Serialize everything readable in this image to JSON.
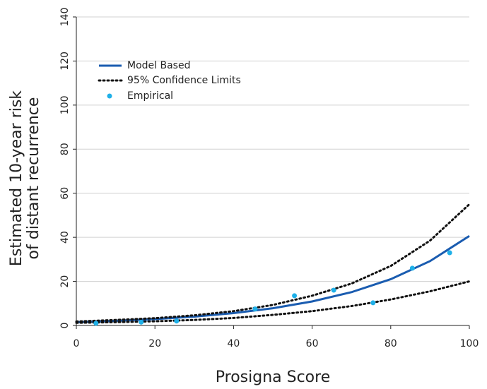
{
  "chart_data": {
    "type": "line",
    "xlabel": "Prosigna Score",
    "ylabel": [
      "Estimated 10-year risk",
      "of distant recurrence"
    ],
    "xlim": [
      0,
      100
    ],
    "xticks": [
      0,
      20,
      40,
      60,
      80,
      100
    ],
    "ylim": [
      0,
      140
    ],
    "yticks": [
      0,
      20,
      40,
      60,
      80,
      100,
      120,
      140
    ],
    "grid": true,
    "legend": "upper left",
    "series": [
      {
        "name": "Model Based",
        "color": "#1a5cb0",
        "style": "solid",
        "x": [
          0,
          10,
          20,
          30,
          40,
          50,
          60,
          70,
          80,
          90,
          100
        ],
        "values": [
          1.5,
          2.1,
          2.9,
          4.0,
          5.6,
          7.8,
          10.9,
          15.1,
          21.0,
          29.2,
          40.6
        ]
      },
      {
        "name": "95% Confidence Limits",
        "color": "#111111",
        "style": "dotted",
        "x": [
          0,
          10,
          20,
          30,
          40,
          50,
          60,
          70,
          80,
          90,
          100
        ],
        "values": [
          1.8,
          2.5,
          3.3,
          4.6,
          6.5,
          9.3,
          13.5,
          19.0,
          27.0,
          38.5,
          55
        ]
      },
      {
        "color": "#111111",
        "style": "dotted",
        "x": [
          0,
          10,
          20,
          30,
          40,
          50,
          60,
          70,
          80,
          90,
          100
        ],
        "values": [
          1.2,
          1.5,
          1.9,
          2.5,
          3.4,
          4.8,
          6.5,
          8.8,
          11.8,
          15.5,
          20
        ]
      },
      {
        "name": "Empirical",
        "color": "#1fb0e8",
        "style": "points",
        "x": [
          5,
          16.5,
          25.5,
          45.5,
          55.5,
          65.5,
          75.5,
          85.5,
          95
        ],
        "values": [
          1,
          1.5,
          2,
          7.5,
          13.5,
          16,
          10.3,
          26,
          33
        ]
      }
    ]
  }
}
